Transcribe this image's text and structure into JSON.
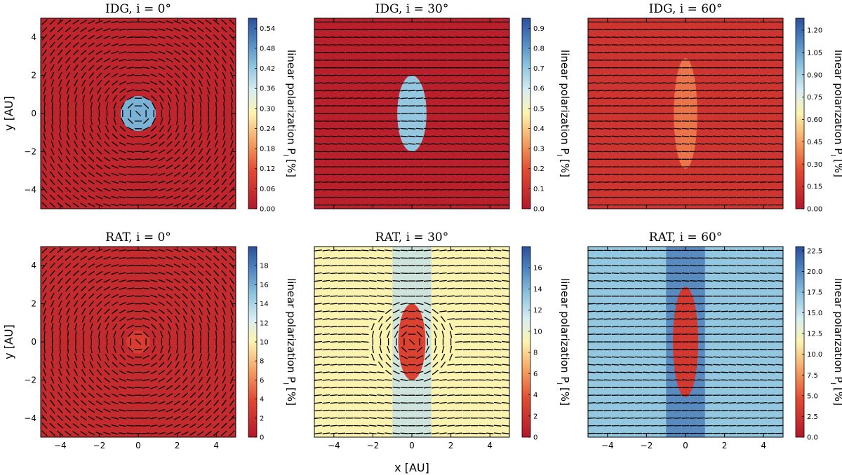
{
  "figure": {
    "x_label": "x [AU]",
    "y_label": "y [AU]",
    "colorbar_label": "linear polarization P",
    "colorbar_label_subscript": "l",
    "colorbar_label_unit": "[%]"
  },
  "chart_data": [
    {
      "type": "heatmap",
      "title": "IDG, i = 0°",
      "model": "IDG",
      "inclination_deg": 0,
      "xlim": [
        -5,
        5
      ],
      "ylim": [
        -5,
        5
      ],
      "x_ticks": [
        "−4",
        "−2",
        "0",
        "2",
        "4"
      ],
      "y_ticks": [
        "−4",
        "−2",
        "0",
        "2",
        "4"
      ],
      "colorbar": {
        "min": 0.0,
        "max": 0.57,
        "ticks": [
          "0.00",
          "0.06",
          "0.12",
          "0.18",
          "0.24",
          "0.30",
          "0.36",
          "0.42",
          "0.48",
          "0.54"
        ],
        "tick_values": [
          0,
          0.06,
          0.12,
          0.18,
          0.24,
          0.3,
          0.36,
          0.42,
          0.48,
          0.54
        ]
      },
      "background_level": 0.03,
      "vectors": "azimuthal",
      "features": [
        {
          "shape": "disk",
          "center": [
            0,
            0
          ],
          "radius": 0.9,
          "level": 0.45
        }
      ]
    },
    {
      "type": "heatmap",
      "title": "IDG, i = 30°",
      "model": "IDG",
      "inclination_deg": 30,
      "xlim": [
        -5,
        5
      ],
      "ylim": [
        -5,
        5
      ],
      "x_ticks": [
        "−4",
        "−2",
        "0",
        "2",
        "4"
      ],
      "y_ticks": [
        "−4",
        "−2",
        "0",
        "2",
        "4"
      ],
      "colorbar": {
        "min": 0.0,
        "max": 0.95,
        "ticks": [
          "0.0",
          "0.1",
          "0.2",
          "0.3",
          "0.4",
          "0.5",
          "0.6",
          "0.7",
          "0.8",
          "0.9"
        ],
        "tick_values": [
          0,
          0.1,
          0.2,
          0.3,
          0.4,
          0.5,
          0.6,
          0.7,
          0.8,
          0.9
        ]
      },
      "background_level": 0.03,
      "vectors": "horizontal",
      "features": [
        {
          "shape": "ellipse",
          "center": [
            0,
            0
          ],
          "rx": 0.75,
          "ry": 2.0,
          "level": 0.7
        }
      ]
    },
    {
      "type": "heatmap",
      "title": "IDG, i = 60°",
      "model": "IDG",
      "inclination_deg": 60,
      "xlim": [
        -5,
        5
      ],
      "ylim": [
        -5,
        5
      ],
      "x_ticks": [
        "−4",
        "−2",
        "0",
        "2",
        "4"
      ],
      "y_ticks": [
        "−4",
        "−2",
        "0",
        "2",
        "4"
      ],
      "colorbar": {
        "min": 0.0,
        "max": 1.28,
        "ticks": [
          "0.00",
          "0.15",
          "0.30",
          "0.45",
          "0.60",
          "0.75",
          "0.90",
          "1.05",
          "1.20"
        ],
        "tick_values": [
          0,
          0.15,
          0.3,
          0.45,
          0.6,
          0.75,
          0.9,
          1.05,
          1.2
        ]
      },
      "background_level": 0.15,
      "vectors": "horizontal",
      "features": [
        {
          "shape": "ellipse",
          "center": [
            0,
            0
          ],
          "rx": 0.6,
          "ry": 2.9,
          "level": 0.35
        }
      ]
    },
    {
      "type": "heatmap",
      "title": "RAT, i = 0°",
      "model": "RAT",
      "inclination_deg": 0,
      "xlim": [
        -5,
        5
      ],
      "ylim": [
        -5,
        5
      ],
      "x_ticks": [
        "−4",
        "−2",
        "0",
        "2",
        "4"
      ],
      "y_ticks": [
        "−4",
        "−2",
        "0",
        "2",
        "4"
      ],
      "colorbar": {
        "min": 0,
        "max": 20,
        "ticks": [
          "0",
          "2",
          "4",
          "6",
          "8",
          "10",
          "12",
          "14",
          "16",
          "18"
        ],
        "tick_values": [
          0,
          2,
          4,
          6,
          8,
          10,
          12,
          14,
          16,
          18
        ]
      },
      "background_level": 1.5,
      "vectors": "azimuthal",
      "features": [
        {
          "shape": "disk",
          "center": [
            0,
            0
          ],
          "radius": 0.6,
          "level": 3
        }
      ]
    },
    {
      "type": "heatmap",
      "title": "RAT, i = 30°",
      "model": "RAT",
      "inclination_deg": 30,
      "xlim": [
        -5,
        5
      ],
      "ylim": [
        -5,
        5
      ],
      "x_ticks": [
        "−4",
        "−2",
        "0",
        "2",
        "4"
      ],
      "y_ticks": [
        "−4",
        "−2",
        "0",
        "2",
        "4"
      ],
      "colorbar": {
        "min": 0,
        "max": 18,
        "ticks": [
          "0",
          "2",
          "4",
          "6",
          "8",
          "10",
          "12",
          "14",
          "16"
        ],
        "tick_values": [
          0,
          2,
          4,
          6,
          8,
          10,
          12,
          14,
          16
        ]
      },
      "background_level": 9,
      "center_column_level": 12,
      "vectors": "mixed",
      "features": [
        {
          "shape": "ellipse",
          "center": [
            0,
            0
          ],
          "rx": 0.7,
          "ry": 2.0,
          "level": 3
        }
      ]
    },
    {
      "type": "heatmap",
      "title": "RAT, i = 60°",
      "model": "RAT",
      "inclination_deg": 60,
      "xlim": [
        -5,
        5
      ],
      "ylim": [
        -5,
        5
      ],
      "x_ticks": [
        "−4",
        "−2",
        "0",
        "2",
        "4"
      ],
      "y_ticks": [
        "−4",
        "−2",
        "0",
        "2",
        "4"
      ],
      "colorbar": {
        "min": 0,
        "max": 23,
        "ticks": [
          "0.0",
          "2.5",
          "5.0",
          "7.5",
          "10.0",
          "12.5",
          "15.0",
          "17.5",
          "20.0",
          "22.5"
        ],
        "tick_values": [
          0,
          2.5,
          5,
          7.5,
          10,
          12.5,
          15,
          17.5,
          20,
          22.5
        ]
      },
      "background_level": 17,
      "center_column_level": 21,
      "vectors": "horizontal",
      "features": [
        {
          "shape": "ellipse",
          "center": [
            0,
            0
          ],
          "rx": 0.65,
          "ry": 2.9,
          "level": 3
        }
      ]
    }
  ]
}
